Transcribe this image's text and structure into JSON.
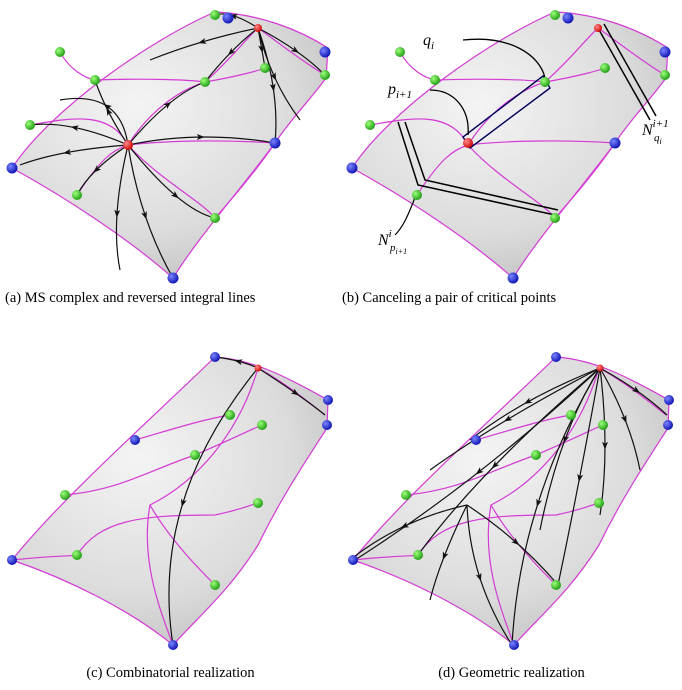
{
  "figure": {
    "panels": [
      {
        "caption": "(a) MS complex and reversed integral lines"
      },
      {
        "caption": "(b) Canceling a pair of critical points",
        "labels": {
          "q": {
            "base": "q",
            "sub": "i"
          },
          "p": {
            "base": "p",
            "sub": "i+1"
          },
          "nq": {
            "base": "N",
            "sup": "i+1",
            "sub": "q",
            "subsub": "i"
          },
          "np": {
            "base": "N",
            "sup": "i",
            "sub": "p",
            "subsub": "i+1"
          }
        }
      },
      {
        "caption": "(c) Combinatorial realization"
      },
      {
        "caption": "(d) Geometric realization"
      }
    ]
  }
}
